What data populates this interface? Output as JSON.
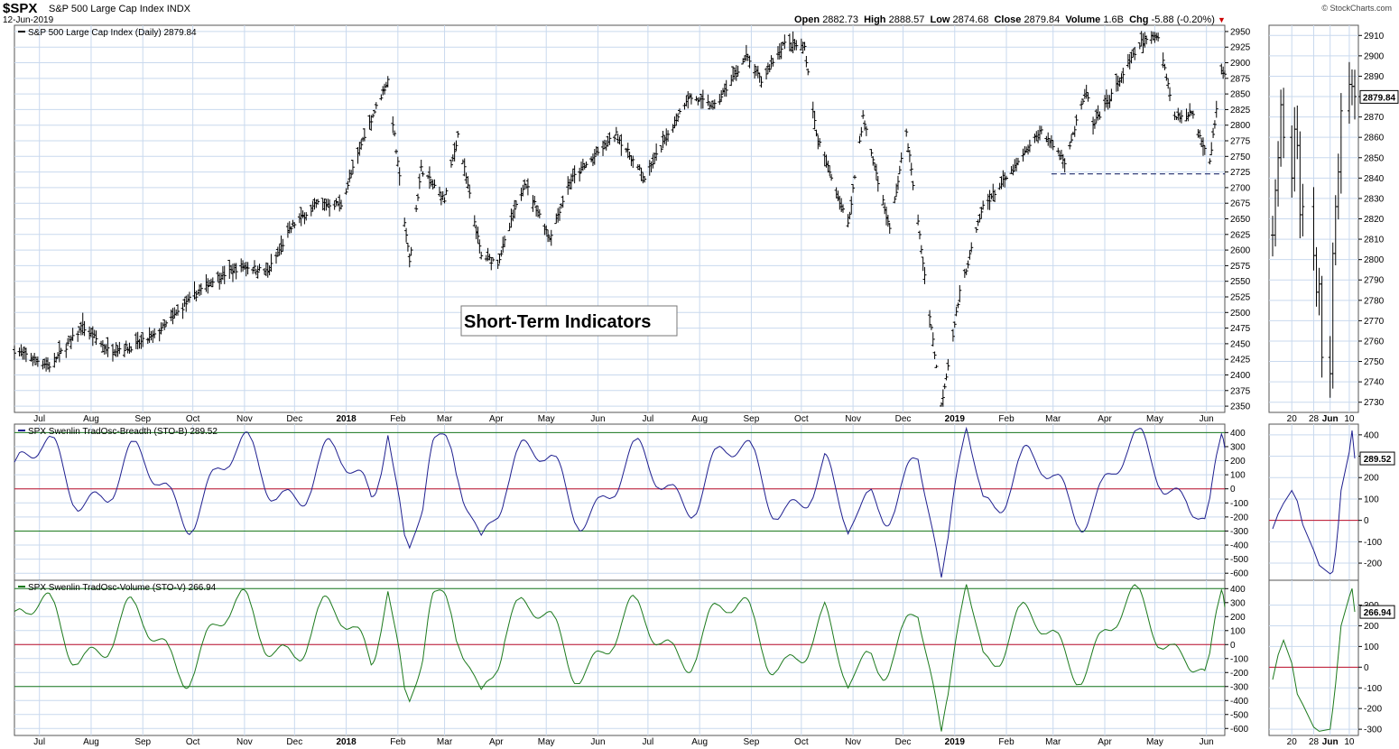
{
  "header": {
    "symbol": "$SPX",
    "name": "S&P 500 Large Cap Index",
    "exchange": "INDX",
    "date": "12-Jun-2019",
    "copyright": "© StockCharts.com",
    "open_label": "Open",
    "open": "2882.73",
    "high_label": "High",
    "high": "2888.57",
    "low_label": "Low",
    "low": "2874.68",
    "close_label": "Close",
    "close": "2879.84",
    "volume_label": "Volume",
    "volume": "1.6B",
    "chg_label": "Chg",
    "chg": "-5.88 (-0.20%)"
  },
  "annotation": "Short-Term Indicators",
  "colors": {
    "price": "#000000",
    "breadth": "#1f1f8f",
    "volume": "#1d7a1d",
    "zero": "#c0102a",
    "band": "#1d7a1d",
    "grid": "#c9d9ee",
    "support": "#1f2a6b"
  },
  "chart_data": [
    {
      "type": "ohlc",
      "title": "S&P 500 Large Cap Index (Daily) 2879.84",
      "ylim": [
        2340,
        2960
      ],
      "y_ticks": [
        2350,
        2375,
        2400,
        2425,
        2450,
        2475,
        2500,
        2525,
        2550,
        2575,
        2600,
        2625,
        2650,
        2675,
        2700,
        2725,
        2750,
        2775,
        2800,
        2825,
        2850,
        2875,
        2900,
        2925,
        2950
      ],
      "x_ticks": [
        "Jul",
        "Aug",
        "Sep",
        "Oct",
        "Nov",
        "Dec",
        "2018",
        "Feb",
        "Mar",
        "Apr",
        "May",
        "Jun",
        "Jul",
        "Aug",
        "Sep",
        "Oct",
        "Nov",
        "Dec",
        "2019",
        "Feb",
        "Mar",
        "Apr",
        "May",
        "Jun"
      ],
      "support_level": 2722,
      "close_path": [
        [
          "2017-06-16",
          2440
        ],
        [
          "2017-07-07",
          2415
        ],
        [
          "2017-07-27",
          2477
        ],
        [
          "2017-08-11",
          2440
        ],
        [
          "2017-08-25",
          2445
        ],
        [
          "2017-09-08",
          2462
        ],
        [
          "2017-09-29",
          2520
        ],
        [
          "2017-10-13",
          2553
        ],
        [
          "2017-10-31",
          2575
        ],
        [
          "2017-11-15",
          2565
        ],
        [
          "2017-11-30",
          2640
        ],
        [
          "2017-12-15",
          2675
        ],
        [
          "2017-12-29",
          2673
        ],
        [
          "2018-01-12",
          2785
        ],
        [
          "2018-01-26",
          2872
        ],
        [
          "2018-02-08",
          2580
        ],
        [
          "2018-02-15",
          2730
        ],
        [
          "2018-03-01",
          2680
        ],
        [
          "2018-03-09",
          2785
        ],
        [
          "2018-03-23",
          2590
        ],
        [
          "2018-04-02",
          2580
        ],
        [
          "2018-04-18",
          2710
        ],
        [
          "2018-05-03",
          2620
        ],
        [
          "2018-05-15",
          2710
        ],
        [
          "2018-06-12",
          2785
        ],
        [
          "2018-06-29",
          2715
        ],
        [
          "2018-07-25",
          2846
        ],
        [
          "2018-08-10",
          2830
        ],
        [
          "2018-08-29",
          2910
        ],
        [
          "2018-09-07",
          2870
        ],
        [
          "2018-09-20",
          2930
        ],
        [
          "2018-10-03",
          2925
        ],
        [
          "2018-10-10",
          2785
        ],
        [
          "2018-10-29",
          2640
        ],
        [
          "2018-11-07",
          2813
        ],
        [
          "2018-11-23",
          2632
        ],
        [
          "2018-12-03",
          2790
        ],
        [
          "2018-12-24",
          2351
        ],
        [
          "2019-01-04",
          2531
        ],
        [
          "2019-01-18",
          2670
        ],
        [
          "2019-02-04",
          2725
        ],
        [
          "2019-02-22",
          2792
        ],
        [
          "2019-03-08",
          2743
        ],
        [
          "2019-03-21",
          2855
        ],
        [
          "2019-03-25",
          2798
        ],
        [
          "2019-04-23",
          2933
        ],
        [
          "2019-05-03",
          2945
        ],
        [
          "2019-05-13",
          2812
        ],
        [
          "2019-05-23",
          2820
        ],
        [
          "2019-06-03",
          2744
        ],
        [
          "2019-06-10",
          2886
        ],
        [
          "2019-06-12",
          2880
        ]
      ],
      "inset": {
        "ylim": [
          2725,
          2915
        ],
        "y_ticks": [
          2730,
          2740,
          2750,
          2760,
          2770,
          2780,
          2790,
          2800,
          2810,
          2820,
          2830,
          2840,
          2850,
          2860,
          2870,
          2880,
          2890,
          2900,
          2910
        ],
        "x_ticks": [
          "20",
          "28",
          "Jun",
          "10"
        ],
        "last_value_tag": "2879.84",
        "close_path": [
          [
            "2019-05-13",
            2812
          ],
          [
            "2019-05-14",
            2834
          ],
          [
            "2019-05-15",
            2850
          ],
          [
            "2019-05-16",
            2876
          ],
          [
            "2019-05-17",
            2860
          ],
          [
            "2019-05-20",
            2840
          ],
          [
            "2019-05-21",
            2864
          ],
          [
            "2019-05-22",
            2856
          ],
          [
            "2019-05-23",
            2822
          ],
          [
            "2019-05-24",
            2826
          ],
          [
            "2019-05-28",
            2802
          ],
          [
            "2019-05-29",
            2784
          ],
          [
            "2019-05-30",
            2788
          ],
          [
            "2019-05-31",
            2752
          ],
          [
            "2019-06-03",
            2744
          ],
          [
            "2019-06-04",
            2803
          ],
          [
            "2019-06-05",
            2826
          ],
          [
            "2019-06-06",
            2843
          ],
          [
            "2019-06-07",
            2873
          ],
          [
            "2019-06-10",
            2886
          ],
          [
            "2019-06-11",
            2885
          ],
          [
            "2019-06-12",
            2880
          ]
        ]
      }
    },
    {
      "type": "line",
      "title": "SPX Swenlin TradOsc-Breadth (STO-B) 289.52",
      "ylim": [
        -650,
        460
      ],
      "y_ticks": [
        -600,
        -500,
        -400,
        -300,
        -200,
        -100,
        0,
        100,
        200,
        300,
        400
      ],
      "bands": [
        400,
        0,
        -300
      ],
      "inset": {
        "ylim": [
          -280,
          450
        ],
        "y_ticks": [
          -200,
          -100,
          0,
          100,
          200,
          300,
          400
        ],
        "bands": [
          0
        ],
        "last_value_tag": "289.52"
      }
    },
    {
      "type": "line",
      "title": "SPX Swenlin TradOsc-Volume (STO-V) 266.94",
      "ylim": [
        -650,
        460
      ],
      "y_ticks": [
        -600,
        -500,
        -400,
        -300,
        -200,
        -100,
        0,
        100,
        200,
        300,
        400
      ],
      "bands": [
        400,
        0,
        -300
      ],
      "inset": {
        "ylim": [
          -330,
          420
        ],
        "y_ticks": [
          -300,
          -200,
          -100,
          0,
          100,
          200,
          300
        ],
        "bands": [
          0
        ],
        "last_value_tag": "266.94"
      }
    }
  ]
}
